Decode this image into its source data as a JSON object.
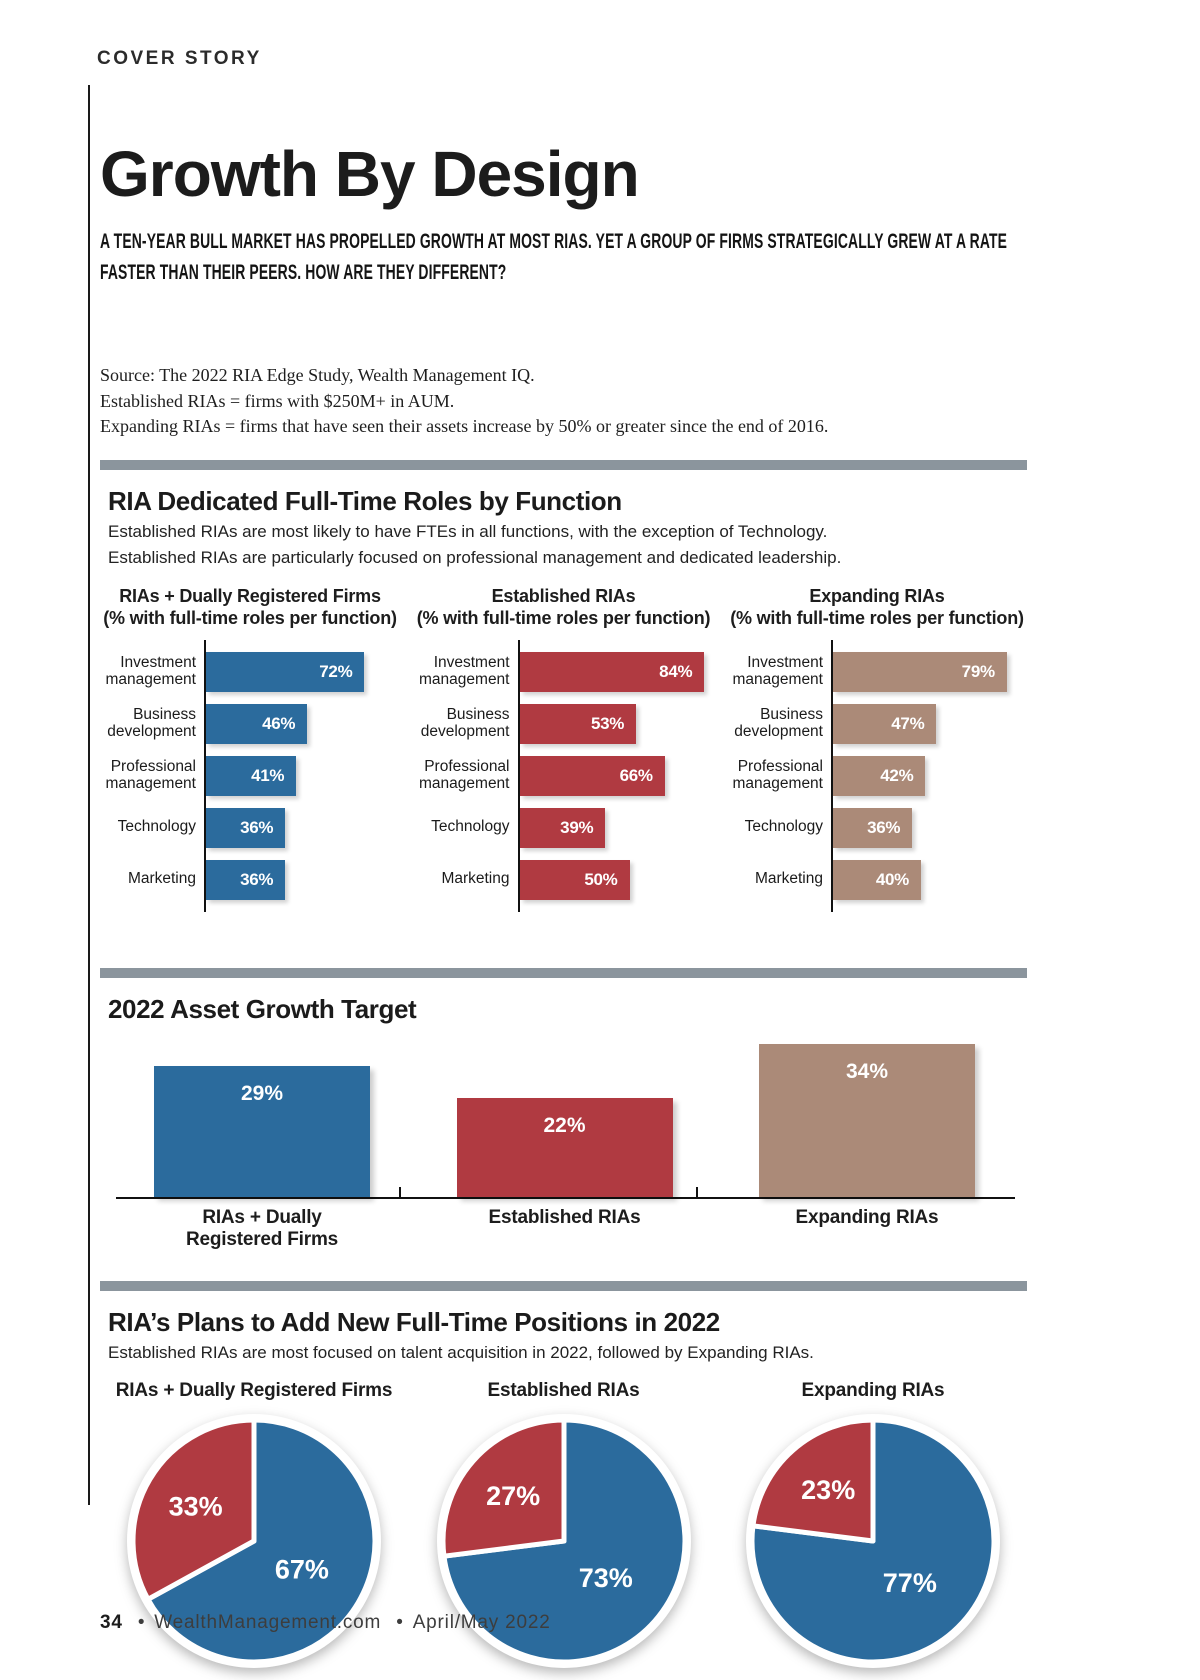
{
  "page": {
    "kicker": "COVER STORY",
    "title": "Growth By Design",
    "deck": "A TEN-YEAR BULL MARKET HAS PROPELLED GROWTH AT MOST RIAS. YET A GROUP OF FIRMS STRATEGICALLY GREW AT A RATE FASTER THAN THEIR PEERS. HOW ARE THEY DIFFERENT?",
    "source_lines": [
      "Source: The 2022 RIA Edge Study, Wealth Management IQ.",
      "Established RIAs = firms with $250M+ in AUM.",
      "Expanding RIAs = firms that have seen their assets increase by 50% or greater since the end of 2016."
    ],
    "footer": {
      "page_number": "34",
      "separator": "•",
      "site": "WealthManagement.com",
      "issue": "April/May 2022"
    }
  },
  "colors": {
    "blue": "#2b6b9d",
    "red": "#b03a41",
    "tan": "#ab8a78",
    "divider_gray": "#8b959d",
    "axis_black": "#111111"
  },
  "chart_data": [
    {
      "type": "bar",
      "orientation": "horizontal",
      "section_title": "RIA Dedicated Full-Time Roles by Function",
      "subtitle_lines": [
        "Established RIAs are most likely to have FTEs in all functions, with the exception of Technology.",
        "Established RIAs are particularly focused on professional management and dedicated leadership."
      ],
      "categories": [
        "Investment management",
        "Business development",
        "Professional management",
        "Technology",
        "Marketing"
      ],
      "series": [
        {
          "name": "RIAs + Dually Registered Firms",
          "axis_note": "(% with full-time roles per function)",
          "color": "#2b6b9d",
          "values": [
            72,
            46,
            41,
            36,
            36
          ]
        },
        {
          "name": "Established RIAs",
          "axis_note": "(% with full-time roles per function)",
          "color": "#b03a41",
          "values": [
            84,
            53,
            66,
            39,
            50
          ]
        },
        {
          "name": "Expanding RIAs",
          "axis_note": "(% with full-time roles per function)",
          "color": "#ab8a78",
          "values": [
            79,
            47,
            42,
            36,
            40
          ]
        }
      ],
      "value_suffix": "%",
      "xlim": [
        0,
        100
      ],
      "grid": false,
      "legend_position": "none"
    },
    {
      "type": "bar",
      "orientation": "vertical",
      "section_title": "2022 Asset Growth Target",
      "categories": [
        "RIAs + Dually Registered Firms",
        "Established RIAs",
        "Expanding RIAs"
      ],
      "values": [
        29,
        22,
        34
      ],
      "bar_colors": [
        "#2b6b9d",
        "#b03a41",
        "#ab8a78"
      ],
      "value_suffix": "%",
      "ylim": [
        0,
        36
      ],
      "grid": false,
      "legend_position": "none"
    },
    {
      "type": "pie",
      "section_title": "RIA’s Plans to Add New Full-Time Positions in 2022",
      "subtitle": "Established RIAs are most focused on talent acquisition in 2022, followed by Expanding RIAs.",
      "charts": [
        {
          "title": "RIAs + Dually Registered Firms",
          "slices": [
            {
              "value": 67,
              "label": "67%",
              "color": "#2b6b9d"
            },
            {
              "value": 33,
              "label": "33%",
              "color": "#b03a41"
            }
          ]
        },
        {
          "title": "Established RIAs",
          "slices": [
            {
              "value": 73,
              "label": "73%",
              "color": "#2b6b9d"
            },
            {
              "value": 27,
              "label": "27%",
              "color": "#b03a41"
            }
          ]
        },
        {
          "title": "Expanding RIAs",
          "slices": [
            {
              "value": 77,
              "label": "77%",
              "color": "#2b6b9d"
            },
            {
              "value": 23,
              "label": "23%",
              "color": "#b03a41"
            }
          ]
        }
      ],
      "legend_position": "none"
    }
  ]
}
